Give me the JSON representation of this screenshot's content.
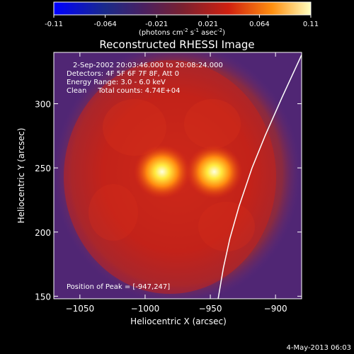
{
  "chart_data": {
    "type": "heatmap",
    "title": "Reconstructed RHESSI Image",
    "xlabel": "Heliocentric X (arcsec)",
    "ylabel": "Heliocentric Y (arcsec)",
    "xlim": [
      -1070,
      -880
    ],
    "ylim": [
      148,
      340
    ],
    "x_ticks": [
      -1050,
      -1000,
      -950,
      -900
    ],
    "y_ticks": [
      150,
      200,
      250,
      300
    ],
    "colorbar": {
      "min": -0.11,
      "max": 0.11,
      "ticks": [
        "-0.11",
        "-0.064",
        "-0.021",
        "0.021",
        "0.064",
        "0.11"
      ],
      "unit_text": "(photons cm",
      "unit_sup1": "-2",
      "unit_mid": " s",
      "unit_sup2": "-1",
      "unit_mid2": " asec",
      "unit_sup3": "-2",
      "unit_end": ")"
    },
    "annotations": [
      "2-Sep-2002 20:03:46.000 to 20:08:24.000",
      "Detectors: 4F 5F 6F 7F 8F, Att 0",
      "Energy Range: 3.0 - 6.0 keV",
      "Clean     Total counts: 4.74E+04"
    ],
    "peak_label": "Position of Peak = [-947,247]",
    "peaks": [
      {
        "x": -987,
        "y": 247
      },
      {
        "x": -947,
        "y": 247
      }
    ],
    "limb_curve": [
      {
        "x": -880,
        "y": 338
      },
      {
        "x": -895,
        "y": 305
      },
      {
        "x": -908,
        "y": 275
      },
      {
        "x": -918,
        "y": 250
      },
      {
        "x": -928,
        "y": 220
      },
      {
        "x": -935,
        "y": 195
      },
      {
        "x": -940,
        "y": 172
      },
      {
        "x": -944,
        "y": 148
      }
    ],
    "grid": false
  },
  "footer": {
    "date": "4-May-2013 06:03"
  },
  "colors": {
    "background": "#000000",
    "low": "#5a2a7a",
    "mid": "#c0201a",
    "high": "#ffffb0"
  }
}
